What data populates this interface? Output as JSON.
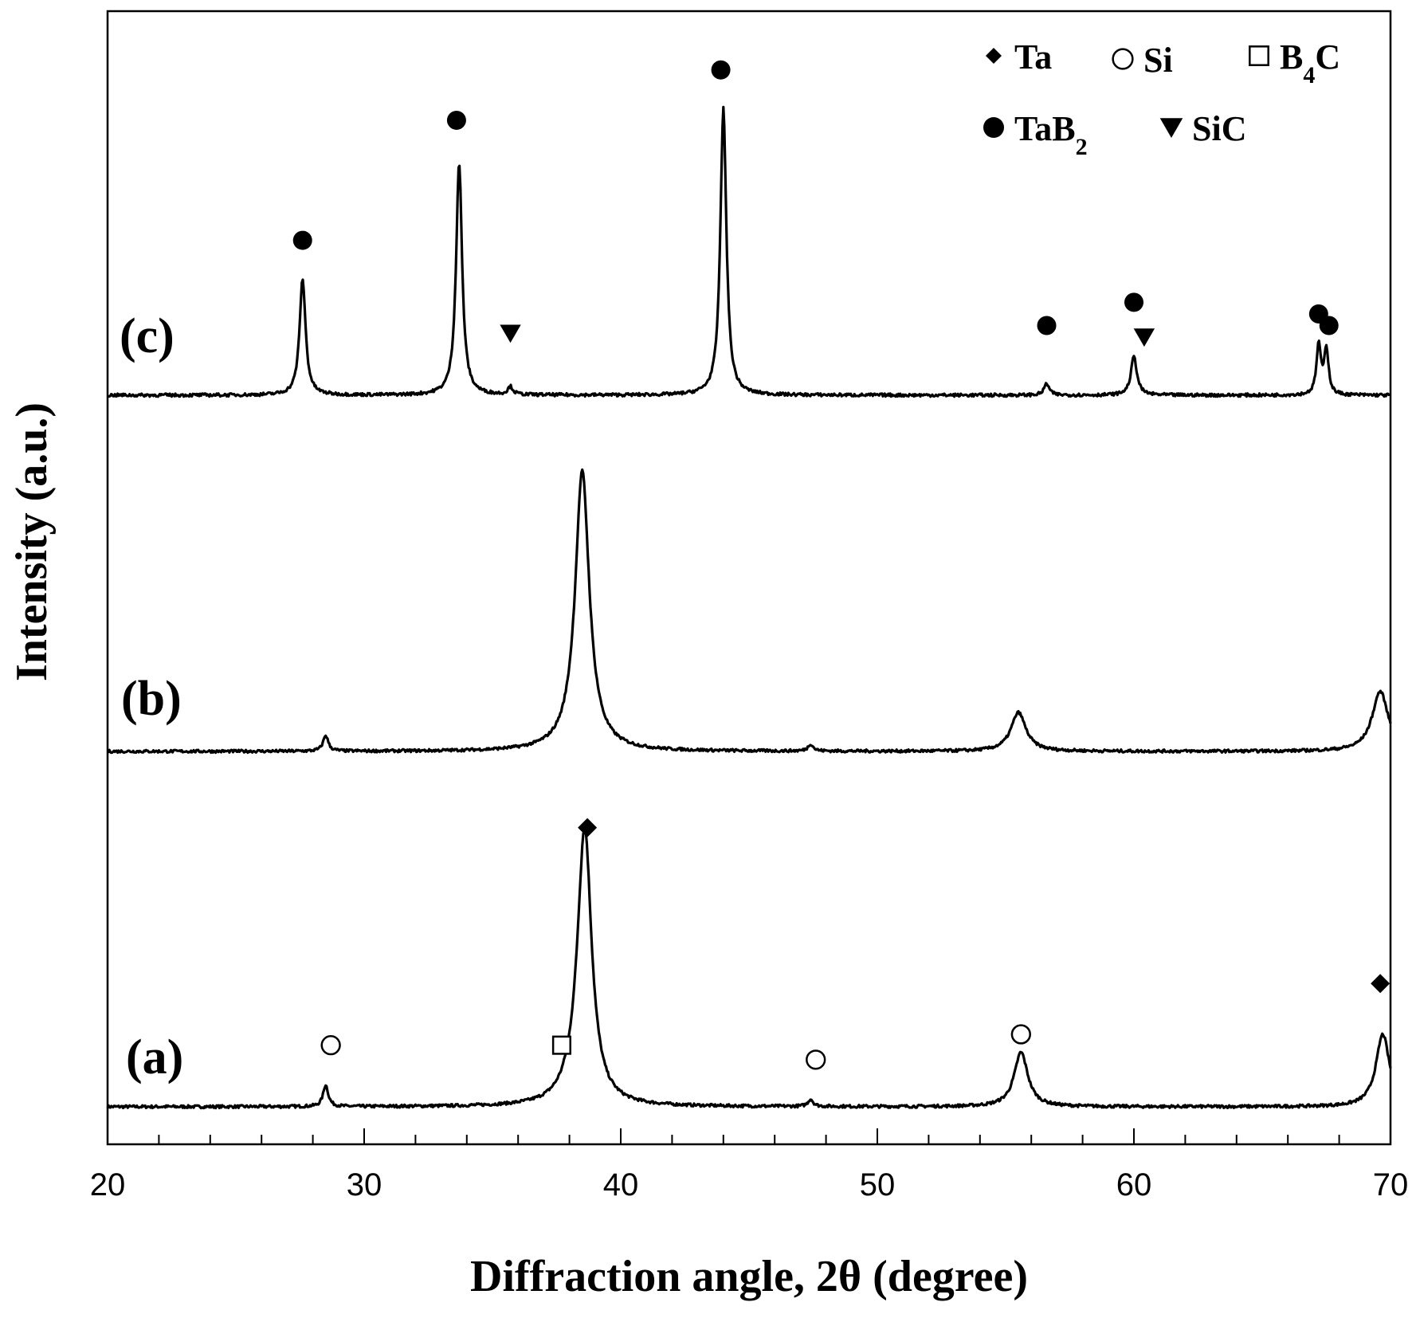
{
  "chart_data": {
    "type": "line",
    "title": "",
    "xlabel": "Diffraction angle, 2θ (degree)",
    "ylabel": "Intensity (a.u.)",
    "xlim": [
      20,
      70
    ],
    "x_ticks": [
      20,
      30,
      40,
      50,
      60,
      70
    ],
    "minor_tick_step": 2,
    "grid": false,
    "legend_position": "top-right",
    "legend": [
      {
        "marker": "diamond",
        "label": "Ta",
        "sub": ""
      },
      {
        "marker": "open-circle",
        "label": "Si",
        "sub": ""
      },
      {
        "marker": "open-square",
        "label": "B",
        "sub": "4",
        "suffix": "C"
      },
      {
        "marker": "filled-circle",
        "label": "TaB",
        "sub": "2",
        "suffix": ""
      },
      {
        "marker": "triangle-down",
        "label": "SiC",
        "sub": ""
      }
    ],
    "series": [
      {
        "name": "(a)",
        "baseline": 0.0,
        "peaks": [
          {
            "x": 28.5,
            "h": 0.06,
            "w": 0.12
          },
          {
            "x": 38.4,
            "h": 0.085,
            "w": 0.5
          },
          {
            "x": 38.6,
            "h": 0.7,
            "w": 0.32
          },
          {
            "x": 47.4,
            "h": 0.02,
            "w": 0.12
          },
          {
            "x": 55.6,
            "h": 0.15,
            "w": 0.32
          },
          {
            "x": 69.7,
            "h": 0.2,
            "w": 0.32
          }
        ],
        "markers": [
          {
            "x": 28.7,
            "y": 0.17,
            "marker": "open-circle"
          },
          {
            "x": 37.7,
            "y": 0.17,
            "marker": "open-square"
          },
          {
            "x": 38.7,
            "y": 0.77,
            "marker": "diamond"
          },
          {
            "x": 47.6,
            "y": 0.13,
            "marker": "open-circle"
          },
          {
            "x": 55.6,
            "y": 0.2,
            "marker": "open-circle"
          },
          {
            "x": 69.6,
            "y": 0.34,
            "marker": "diamond"
          }
        ]
      },
      {
        "name": "(b)",
        "baseline": 0.0,
        "peaks": [
          {
            "x": 28.5,
            "h": 0.045,
            "w": 0.12
          },
          {
            "x": 38.5,
            "h": 0.075,
            "w": 0.5
          },
          {
            "x": 38.5,
            "h": 0.72,
            "w": 0.32
          },
          {
            "x": 47.4,
            "h": 0.02,
            "w": 0.12
          },
          {
            "x": 55.5,
            "h": 0.11,
            "w": 0.35
          },
          {
            "x": 69.6,
            "h": 0.17,
            "w": 0.38
          }
        ],
        "markers": []
      },
      {
        "name": "(c)",
        "baseline": 0.0,
        "peaks": [
          {
            "x": 27.6,
            "h": 0.3,
            "w": 0.14
          },
          {
            "x": 33.7,
            "h": 0.6,
            "w": 0.14
          },
          {
            "x": 35.7,
            "h": 0.02,
            "w": 0.12
          },
          {
            "x": 44.0,
            "h": 0.74,
            "w": 0.14
          },
          {
            "x": 56.6,
            "h": 0.03,
            "w": 0.12
          },
          {
            "x": 60.0,
            "h": 0.1,
            "w": 0.14
          },
          {
            "x": 67.2,
            "h": 0.13,
            "w": 0.1
          },
          {
            "x": 67.5,
            "h": 0.12,
            "w": 0.1
          }
        ],
        "markers": [
          {
            "x": 27.6,
            "y": 0.4,
            "marker": "filled-circle"
          },
          {
            "x": 33.6,
            "y": 0.71,
            "marker": "filled-circle"
          },
          {
            "x": 35.7,
            "y": 0.16,
            "marker": "triangle-down"
          },
          {
            "x": 43.9,
            "y": 0.84,
            "marker": "filled-circle"
          },
          {
            "x": 56.6,
            "y": 0.18,
            "marker": "filled-circle"
          },
          {
            "x": 60.0,
            "y": 0.24,
            "marker": "filled-circle"
          },
          {
            "x": 60.4,
            "y": 0.15,
            "marker": "triangle-down"
          },
          {
            "x": 67.2,
            "y": 0.21,
            "marker": "filled-circle"
          },
          {
            "x": 67.6,
            "y": 0.18,
            "marker": "filled-circle"
          }
        ]
      }
    ]
  }
}
